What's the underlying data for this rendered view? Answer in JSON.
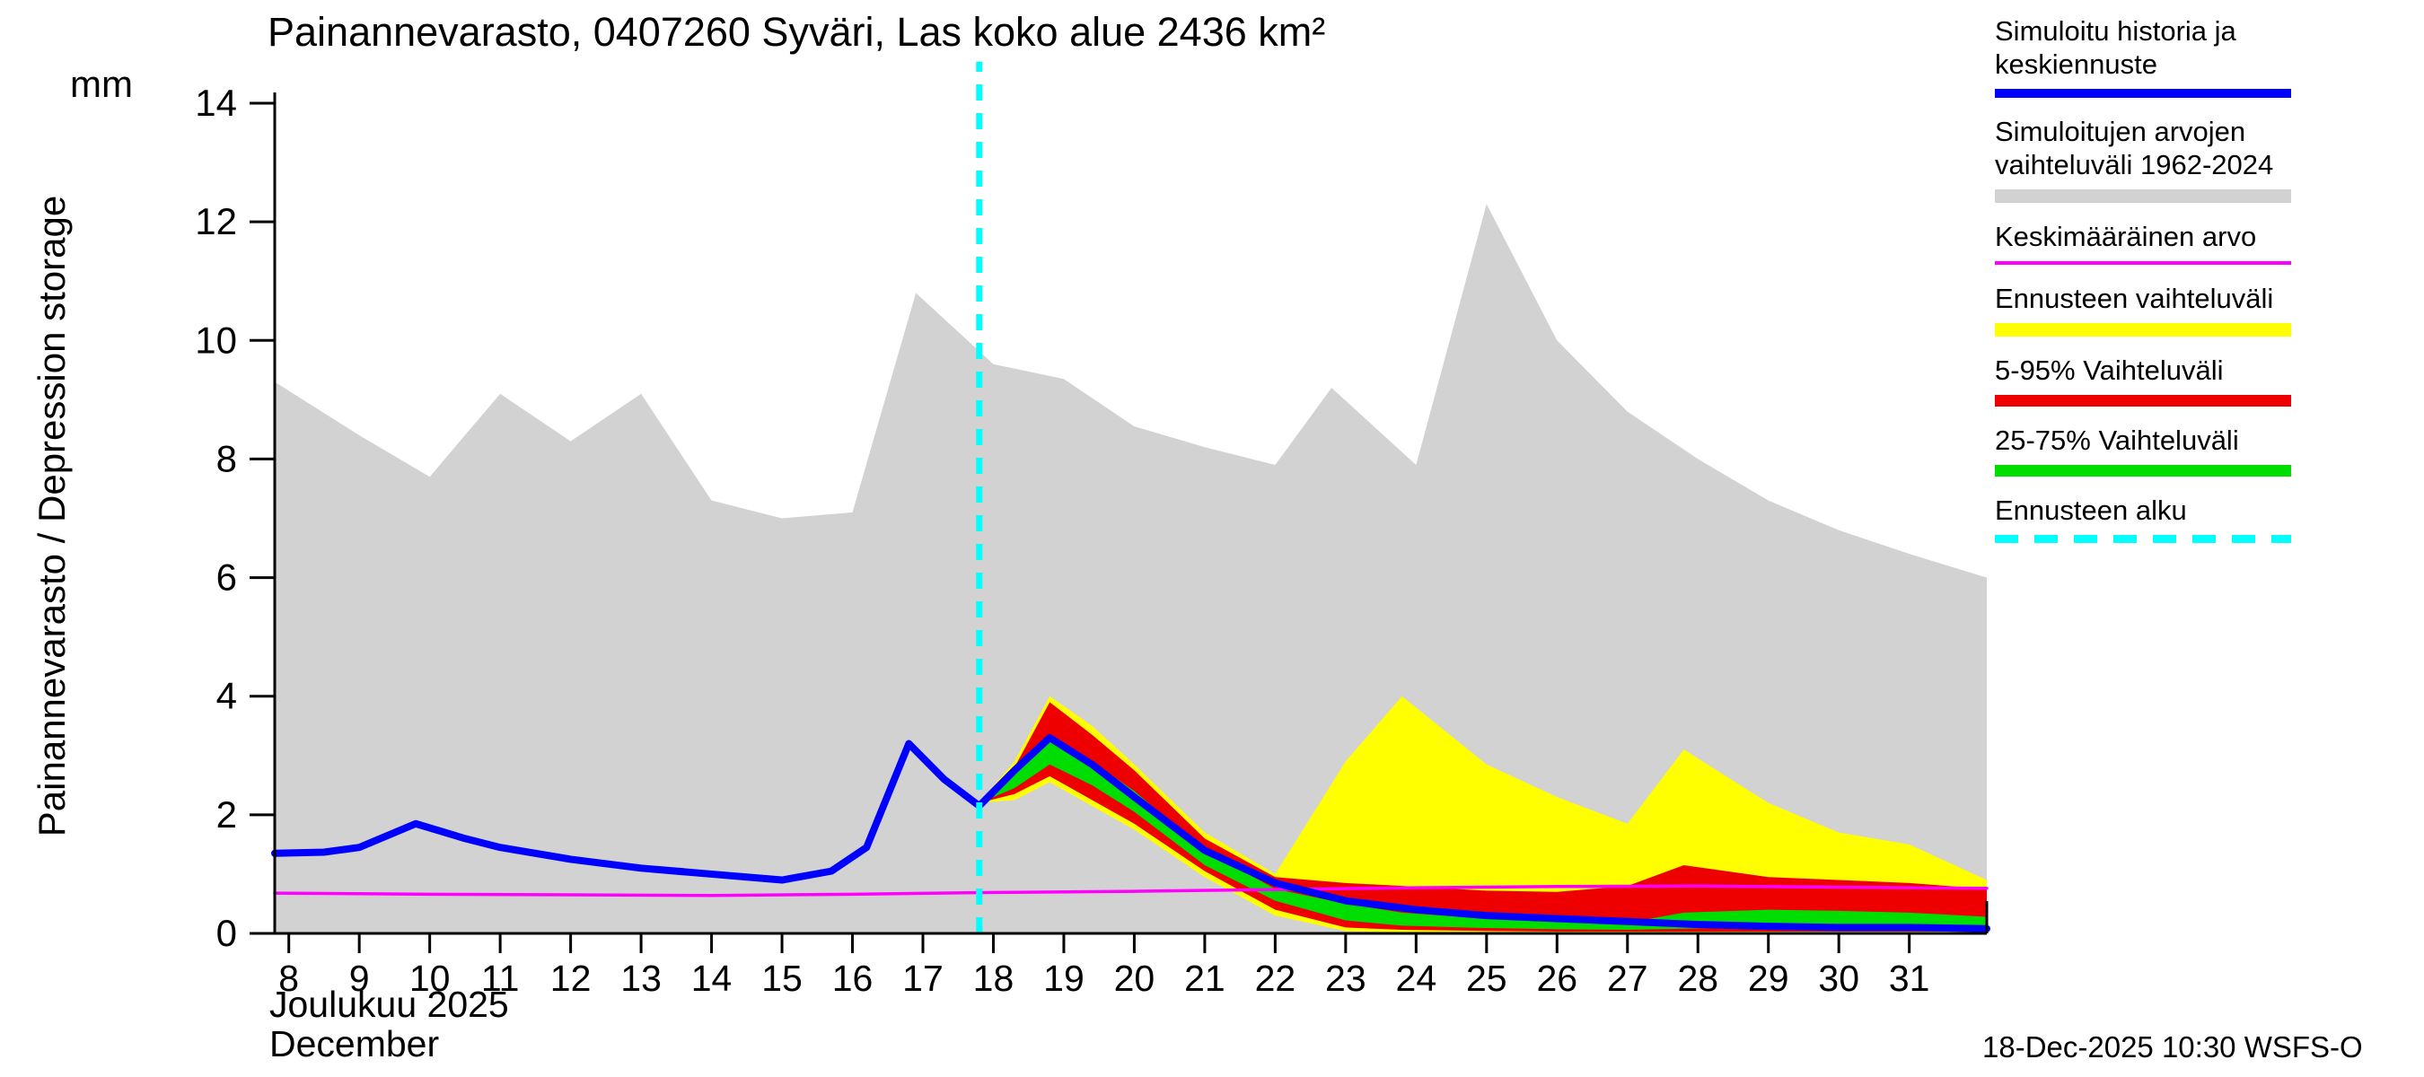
{
  "footer": {
    "timestamp": "18-Dec-2025 10:30 WSFS-O"
  },
  "legend": {
    "items": [
      {
        "key": "history-mean",
        "lines": [
          "Simuloitu historia ja",
          "keskiennuste"
        ],
        "color": "#0000ff",
        "swatch_height": 10,
        "dashed": false
      },
      {
        "key": "sim-range",
        "lines": [
          "Simuloitujen arvojen",
          "vaihteluväli 1962-2024"
        ],
        "color": "#d2d2d2",
        "swatch_height": 15,
        "dashed": false
      },
      {
        "key": "average",
        "lines": [
          "Keskimääräinen arvo"
        ],
        "color": "#ff00ff",
        "swatch_height": 4,
        "dashed": false
      },
      {
        "key": "forecast-range",
        "lines": [
          "Ennusteen vaihteluväli"
        ],
        "color": "#ffff00",
        "swatch_height": 15,
        "dashed": false
      },
      {
        "key": "p5-95",
        "lines": [
          "5-95% Vaihteluväli"
        ],
        "color": "#ee0000",
        "swatch_height": 13,
        "dashed": false
      },
      {
        "key": "p25-75",
        "lines": [
          "25-75% Vaihteluväli"
        ],
        "color": "#00dd00",
        "swatch_height": 13,
        "dashed": false
      },
      {
        "key": "forecast-start",
        "lines": [
          "Ennusteen alku"
        ],
        "color": "#00ffff",
        "swatch_height": 9,
        "dashed": true
      }
    ]
  },
  "chart_data": {
    "type": "area",
    "title": "Painannevarasto, 0407260 Syväri, Las koko alue 2436 km²",
    "ylabel": "Painannevarasto / Depression storage",
    "y_unit": "mm",
    "month_label_fi": "Joulukuu 2025",
    "month_label_en": "December",
    "xlim": [
      7.8,
      32.1
    ],
    "ylim": [
      0,
      14
    ],
    "y_ticks": [
      0,
      2,
      4,
      6,
      8,
      10,
      12,
      14
    ],
    "x_ticks": [
      8,
      9,
      10,
      11,
      12,
      13,
      14,
      15,
      16,
      17,
      18,
      19,
      20,
      21,
      22,
      23,
      24,
      25,
      26,
      27,
      28,
      29,
      30,
      31
    ],
    "grid": false,
    "legend_position": "right",
    "forecast_start_day": 17.8,
    "forecast_start_extent": [
      0,
      14.7
    ],
    "colors": {
      "history_mean": "#0000ff",
      "sim_range": "#d2d2d2",
      "average": "#ff00ff",
      "forecast_range": "#ffff00",
      "p5_95": "#ee0000",
      "p25_75": "#00dd00",
      "forecast_start": "#00ffff",
      "axis": "#000000"
    },
    "sim_range": {
      "name": "Simuloitujen arvojen vaihteluväli 1962-2024",
      "x": [
        7.8,
        9,
        10,
        11,
        12,
        13,
        14,
        15,
        16,
        16.9,
        18,
        19,
        20,
        21,
        22,
        22.8,
        24,
        25,
        26,
        27,
        28,
        29,
        30,
        31,
        32.1
      ],
      "upper": [
        9.3,
        8.4,
        7.7,
        9.1,
        8.3,
        9.1,
        7.3,
        7.0,
        7.1,
        10.8,
        9.6,
        9.35,
        8.55,
        8.2,
        7.9,
        9.2,
        7.9,
        12.3,
        10.0,
        8.8,
        8.0,
        7.3,
        6.8,
        6.4,
        6.0
      ],
      "lower_constant": 0
    },
    "average": {
      "name": "Keskimääräinen arvo",
      "x": [
        7.8,
        10,
        12,
        14,
        16,
        18,
        20,
        22,
        24,
        26,
        28,
        30,
        32.1
      ],
      "values": [
        0.68,
        0.66,
        0.65,
        0.64,
        0.66,
        0.69,
        0.71,
        0.74,
        0.77,
        0.79,
        0.8,
        0.78,
        0.76
      ]
    },
    "history_mean": {
      "name": "Simuloitu historia ja keskiennuste",
      "x": [
        7.8,
        8.5,
        9,
        9.8,
        10.5,
        11,
        12,
        13,
        14,
        15,
        15.7,
        16.2,
        16.8,
        17.3,
        17.8,
        18.3,
        18.8,
        19.4,
        20,
        21,
        22,
        23,
        24,
        25,
        26,
        27,
        28,
        29,
        30,
        31,
        32.1
      ],
      "values": [
        1.35,
        1.37,
        1.45,
        1.85,
        1.6,
        1.45,
        1.25,
        1.1,
        1.0,
        0.9,
        1.05,
        1.45,
        3.2,
        2.6,
        2.15,
        2.75,
        3.3,
        2.85,
        2.3,
        1.4,
        0.85,
        0.55,
        0.4,
        0.3,
        0.25,
        0.2,
        0.15,
        0.12,
        0.1,
        0.1,
        0.08
      ]
    },
    "forecast_x": [
      17.8,
      18.3,
      18.8,
      19.4,
      20,
      21,
      22,
      23,
      23.8,
      25,
      26,
      27,
      27.8,
      29,
      30,
      31,
      32.1
    ],
    "forecast_range": {
      "name": "Ennusteen vaihteluväli",
      "upper": [
        2.2,
        2.9,
        4.0,
        3.5,
        2.85,
        1.7,
        1.0,
        2.9,
        4.0,
        2.85,
        2.3,
        1.85,
        3.1,
        2.2,
        1.7,
        1.5,
        0.9
      ],
      "lower": [
        2.2,
        2.25,
        2.55,
        2.15,
        1.75,
        0.95,
        0.3,
        0.04,
        0.02,
        0.01,
        0.01,
        0.01,
        0.01,
        0.01,
        0.01,
        0.01,
        0.01
      ]
    },
    "p5_95": {
      "name": "5-95% Vaihteluväli",
      "upper": [
        2.2,
        2.8,
        3.9,
        3.35,
        2.75,
        1.6,
        0.95,
        0.85,
        0.8,
        0.72,
        0.7,
        0.8,
        1.15,
        0.95,
        0.9,
        0.85,
        0.75
      ],
      "lower": [
        2.2,
        2.35,
        2.65,
        2.25,
        1.85,
        1.05,
        0.4,
        0.1,
        0.06,
        0.04,
        0.03,
        0.03,
        0.03,
        0.03,
        0.03,
        0.03,
        0.03
      ]
    },
    "p25_75": {
      "name": "25-75% Vaihteluväli",
      "upper": [
        2.2,
        2.7,
        3.25,
        2.9,
        2.4,
        1.4,
        0.75,
        0.5,
        0.35,
        0.25,
        0.2,
        0.18,
        0.35,
        0.4,
        0.38,
        0.35,
        0.28
      ],
      "lower": [
        2.2,
        2.45,
        2.85,
        2.5,
        2.05,
        1.15,
        0.55,
        0.22,
        0.13,
        0.09,
        0.07,
        0.06,
        0.08,
        0.1,
        0.12,
        0.08,
        0.05
      ]
    }
  }
}
